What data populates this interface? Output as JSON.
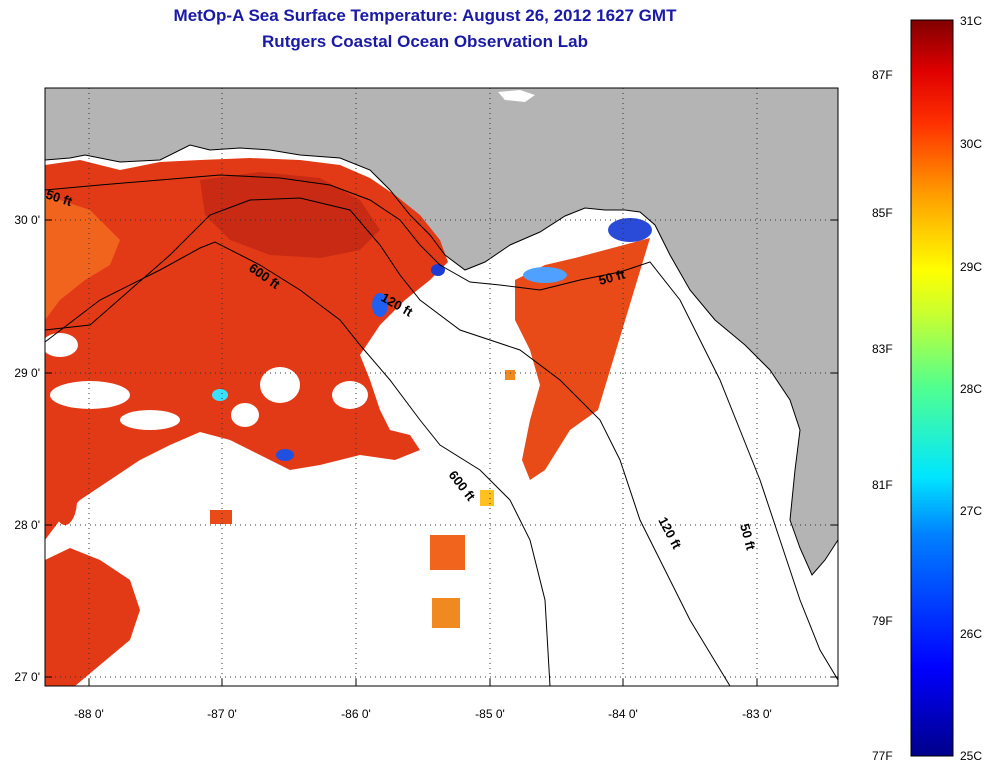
{
  "title": {
    "line1": "MetOp-A Sea Surface Temperature:  August 26, 2012 1627 GMT",
    "line2": "Rutgers Coastal Ocean Observation Lab"
  },
  "lat_labels": [
    "30 0'",
    "29 0'",
    "28 0'",
    "27 0'"
  ],
  "lon_labels": [
    "-88 0'",
    "-87 0'",
    "-86 0'",
    "-85 0'",
    "-84 0'",
    "-83 0'"
  ],
  "colorbar": {
    "fahrenheit": [
      "87F",
      "85F",
      "83F",
      "81F",
      "79F",
      "77F"
    ],
    "celsius": [
      "31C",
      "30C",
      "29C",
      "28C",
      "27C",
      "26C",
      "25C"
    ]
  },
  "contours": [
    "50 ft",
    "600 ft",
    "120 ft",
    "50 ft",
    "600 ft",
    "120 ft",
    "50 ft"
  ],
  "colors": {
    "title": "#1a1aa6",
    "land": "#b4b4b4",
    "ocean_nodata": "#ffffff",
    "sst_hot": "#e63214",
    "sst_warm": "#f5641e",
    "sst_cool": "#1e3cd2"
  }
}
